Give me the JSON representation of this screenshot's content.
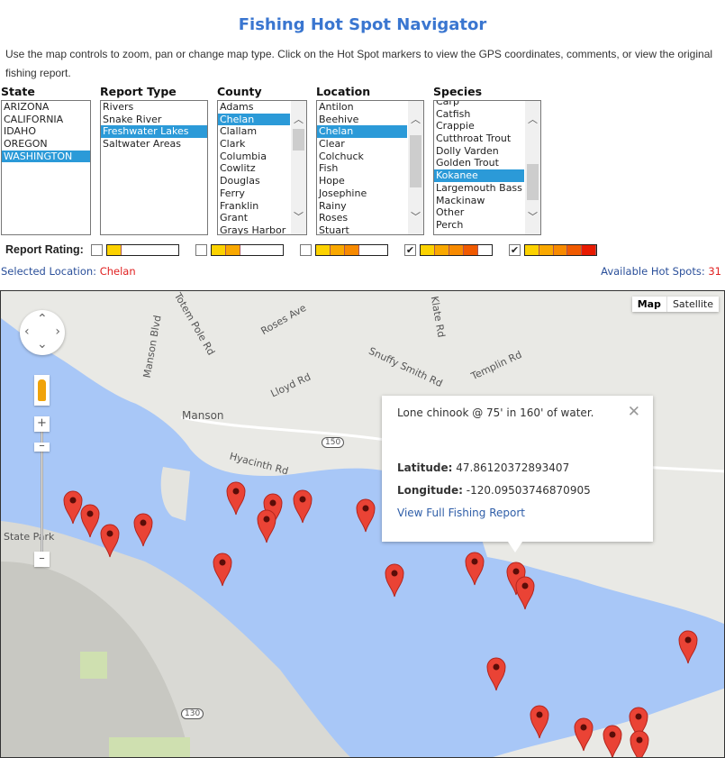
{
  "title": "Fishing Hot Spot Navigator",
  "intro": "Use the map controls to zoom, pan or change map type. Click on the Hot Spot markers to view the GPS coordinates, comments, or view the original fishing report.",
  "filters": [
    {
      "label": "State",
      "items": [
        "ARIZONA",
        "CALIFORNIA",
        "IDAHO",
        "OREGON",
        "WASHINGTON"
      ],
      "selected": "WASHINGTON"
    },
    {
      "label": "Report Type",
      "items": [
        "Rivers",
        "Snake River",
        "Freshwater Lakes",
        "Saltwater Areas"
      ],
      "selected": "Freshwater Lakes"
    },
    {
      "label": "County",
      "items": [
        "Adams",
        "Chelan",
        "Clallam",
        "Clark",
        "Columbia",
        "Cowlitz",
        "Douglas",
        "Ferry",
        "Franklin",
        "Grant",
        "Grays Harbor"
      ],
      "selected": "Chelan"
    },
    {
      "label": "Location",
      "items": [
        "Antilon",
        "Beehive",
        "Chelan",
        "Clear",
        "Colchuck",
        "Fish",
        "Hope",
        "Josephine",
        "Rainy",
        "Roses",
        "Stuart"
      ],
      "selected": "Chelan"
    },
    {
      "label": "Species",
      "items": [
        "Carp",
        "Catfish",
        "Crappie",
        "Cutthroat Trout",
        "Dolly Varden",
        "Golden Trout",
        "Kokanee",
        "Largemouth Bass",
        "Mackinaw",
        "Other",
        "Perch"
      ],
      "selected": "Kokanee"
    }
  ],
  "rating": {
    "label": "Report Rating:",
    "levels": [
      {
        "stars": 1,
        "checked": false
      },
      {
        "stars": 2,
        "checked": false
      },
      {
        "stars": 3,
        "checked": false
      },
      {
        "stars": 4,
        "checked": true
      },
      {
        "stars": 5,
        "checked": true
      }
    ],
    "colors": [
      "#fcd200",
      "#f9a800",
      "#f78a00",
      "#f05a00",
      "#e81a00"
    ]
  },
  "selected_location": {
    "label": "Selected Location:",
    "value": "Chelan"
  },
  "hot_spots": {
    "label": "Available Hot Spots:",
    "value": "31"
  },
  "map": {
    "type_buttons": [
      "Map",
      "Satellite"
    ],
    "active_type": "Map",
    "labels": [
      "Manson",
      "Totem Pole Rd",
      "Manson Blvd",
      "Roses Ave",
      "Lloyd Rd",
      "Snuffy Smith Rd",
      "Templin Rd",
      "Klate Rd",
      "Hyacinth Rd",
      "State Park",
      "150",
      "130"
    ],
    "info": {
      "comment": "Lone chinook @ 75' in 160' of water.",
      "lat_label": "Latitude:",
      "lat": "47.86120372893407",
      "lon_label": "Longitude:",
      "lon": "-120.09503746870905",
      "link": "View Full Fishing Report"
    }
  }
}
